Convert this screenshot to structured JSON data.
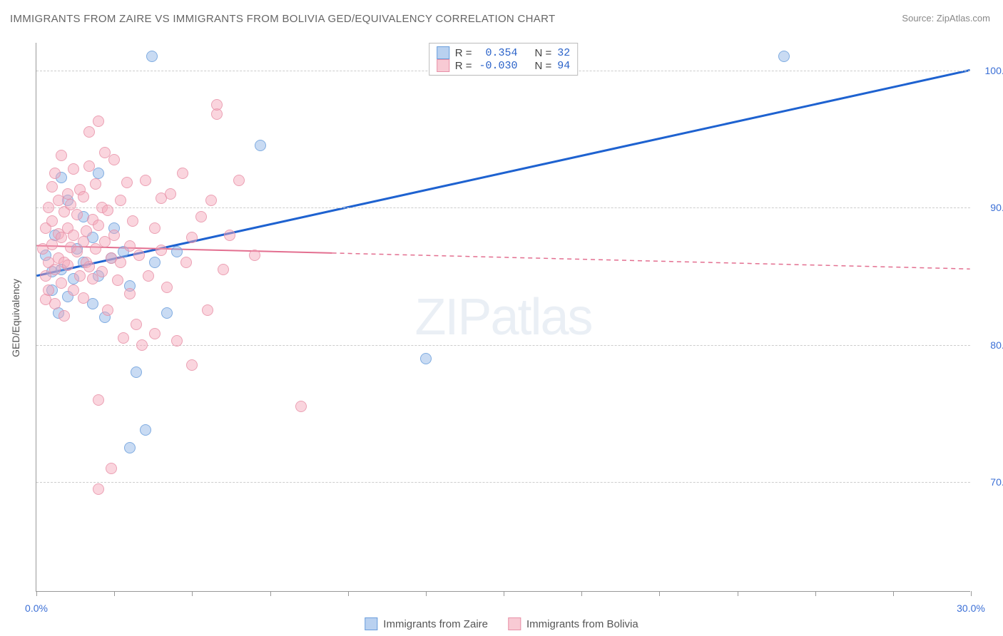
{
  "title": "IMMIGRANTS FROM ZAIRE VS IMMIGRANTS FROM BOLIVIA GED/EQUIVALENCY CORRELATION CHART",
  "source_label": "Source:",
  "source_value": "ZipAtlas.com",
  "watermark": "ZIPatlas",
  "chart": {
    "type": "scatter",
    "y_axis_label": "GED/Equivalency",
    "background_color": "#ffffff",
    "grid_color": "#cccccc",
    "axis_color": "#999999",
    "xlim": [
      0,
      30
    ],
    "ylim": [
      62,
      102
    ],
    "x_ticks_at": [
      0,
      2.5,
      5,
      7.5,
      10,
      12.5,
      15,
      17.5,
      20,
      22.5,
      25,
      27.5,
      30
    ],
    "x_labels": [
      {
        "at": 0,
        "text": "0.0%"
      },
      {
        "at": 30,
        "text": "30.0%"
      }
    ],
    "y_gridlines": [
      70,
      80,
      90,
      100
    ],
    "y_labels": [
      {
        "at": 70,
        "text": "70.0%"
      },
      {
        "at": 80,
        "text": "80.0%"
      },
      {
        "at": 90,
        "text": "90.0%"
      },
      {
        "at": 100,
        "text": "100.0%"
      }
    ],
    "tick_label_color": "#3b6fd6",
    "tick_label_fontsize": 14,
    "series": [
      {
        "name": "Immigrants from Zaire",
        "color_fill": "rgba(138,178,230,0.55)",
        "color_stroke": "#6a9edc",
        "R": "0.354",
        "N": "32",
        "trend": {
          "x1": 0,
          "y1": 85,
          "x2": 30,
          "y2": 100,
          "solid_until_x": 30,
          "color": "#1e62d0",
          "width": 3
        },
        "points": [
          [
            0.3,
            86.5
          ],
          [
            0.5,
            84.0
          ],
          [
            0.5,
            85.3
          ],
          [
            0.6,
            88.0
          ],
          [
            0.7,
            82.3
          ],
          [
            0.8,
            92.2
          ],
          [
            0.8,
            85.5
          ],
          [
            1.0,
            90.5
          ],
          [
            1.0,
            83.5
          ],
          [
            1.2,
            84.8
          ],
          [
            1.3,
            87.0
          ],
          [
            1.5,
            89.3
          ],
          [
            1.5,
            86.0
          ],
          [
            1.8,
            83.0
          ],
          [
            1.8,
            87.8
          ],
          [
            2.0,
            92.5
          ],
          [
            2.0,
            85.0
          ],
          [
            2.2,
            82.0
          ],
          [
            2.4,
            86.3
          ],
          [
            2.5,
            88.5
          ],
          [
            2.8,
            86.8
          ],
          [
            3.0,
            72.5
          ],
          [
            3.0,
            84.3
          ],
          [
            3.2,
            78.0
          ],
          [
            3.5,
            73.8
          ],
          [
            3.7,
            101.0
          ],
          [
            3.8,
            86.0
          ],
          [
            4.2,
            82.3
          ],
          [
            4.5,
            86.8
          ],
          [
            7.2,
            94.5
          ],
          [
            12.5,
            79.0
          ],
          [
            24.0,
            101.0
          ]
        ]
      },
      {
        "name": "Immigrants from Bolivia",
        "color_fill": "rgba(244,166,184,0.55)",
        "color_stroke": "#e891a8",
        "R": "-0.030",
        "N": "94",
        "trend": {
          "x1": 0,
          "y1": 87.2,
          "x2": 30,
          "y2": 85.5,
          "solid_until_x": 9.5,
          "color": "#e36f90",
          "width": 2
        },
        "points": [
          [
            0.2,
            87.0
          ],
          [
            0.3,
            85.0
          ],
          [
            0.3,
            88.5
          ],
          [
            0.3,
            83.3
          ],
          [
            0.4,
            90.0
          ],
          [
            0.4,
            86.0
          ],
          [
            0.4,
            84.0
          ],
          [
            0.5,
            89.0
          ],
          [
            0.5,
            87.3
          ],
          [
            0.5,
            91.5
          ],
          [
            0.6,
            85.5
          ],
          [
            0.6,
            92.5
          ],
          [
            0.6,
            83.0
          ],
          [
            0.7,
            88.1
          ],
          [
            0.7,
            86.3
          ],
          [
            0.7,
            90.5
          ],
          [
            0.8,
            84.5
          ],
          [
            0.8,
            93.8
          ],
          [
            0.8,
            87.8
          ],
          [
            0.9,
            86.0
          ],
          [
            0.9,
            89.7
          ],
          [
            0.9,
            82.1
          ],
          [
            1.0,
            91.0
          ],
          [
            1.0,
            88.5
          ],
          [
            1.0,
            85.8
          ],
          [
            1.1,
            87.1
          ],
          [
            1.1,
            90.2
          ],
          [
            1.2,
            84.0
          ],
          [
            1.2,
            92.8
          ],
          [
            1.2,
            88.0
          ],
          [
            1.3,
            86.8
          ],
          [
            1.3,
            89.5
          ],
          [
            1.4,
            85.0
          ],
          [
            1.4,
            91.3
          ],
          [
            1.5,
            87.5
          ],
          [
            1.5,
            83.4
          ],
          [
            1.5,
            90.8
          ],
          [
            1.6,
            88.3
          ],
          [
            1.6,
            86.0
          ],
          [
            1.7,
            93.0
          ],
          [
            1.7,
            95.5
          ],
          [
            1.7,
            85.7
          ],
          [
            1.8,
            89.1
          ],
          [
            1.8,
            84.8
          ],
          [
            1.9,
            87.0
          ],
          [
            1.9,
            91.7
          ],
          [
            2.0,
            96.3
          ],
          [
            2.0,
            88.7
          ],
          [
            2.0,
            76.0
          ],
          [
            2.1,
            85.3
          ],
          [
            2.1,
            90.0
          ],
          [
            2.2,
            94.0
          ],
          [
            2.2,
            87.5
          ],
          [
            2.3,
            82.5
          ],
          [
            2.3,
            89.8
          ],
          [
            2.4,
            86.3
          ],
          [
            2.4,
            71.0
          ],
          [
            2.5,
            93.5
          ],
          [
            2.5,
            88.0
          ],
          [
            2.6,
            84.7
          ],
          [
            2.7,
            90.5
          ],
          [
            2.7,
            86.0
          ],
          [
            2.8,
            80.5
          ],
          [
            2.9,
            91.8
          ],
          [
            3.0,
            87.2
          ],
          [
            3.0,
            83.7
          ],
          [
            3.1,
            89.0
          ],
          [
            3.2,
            81.5
          ],
          [
            3.3,
            86.5
          ],
          [
            3.4,
            80.0
          ],
          [
            3.5,
            92.0
          ],
          [
            3.6,
            85.0
          ],
          [
            3.8,
            88.5
          ],
          [
            3.8,
            80.8
          ],
          [
            4.0,
            86.9
          ],
          [
            4.0,
            90.7
          ],
          [
            4.2,
            84.2
          ],
          [
            4.3,
            91.0
          ],
          [
            4.5,
            80.3
          ],
          [
            4.8,
            86.0
          ],
          [
            5.0,
            87.8
          ],
          [
            5.0,
            78.5
          ],
          [
            5.3,
            89.3
          ],
          [
            5.5,
            82.5
          ],
          [
            5.6,
            90.5
          ],
          [
            5.8,
            96.8
          ],
          [
            5.8,
            97.5
          ],
          [
            6.0,
            85.5
          ],
          [
            6.2,
            88.0
          ],
          [
            6.5,
            92.0
          ],
          [
            7.0,
            86.5
          ],
          [
            8.5,
            75.5
          ],
          [
            4.7,
            92.5
          ],
          [
            2.0,
            69.5
          ]
        ]
      }
    ]
  },
  "legend_bottom": [
    {
      "swatch": "a",
      "label": "Immigrants from Zaire"
    },
    {
      "swatch": "b",
      "label": "Immigrants from Bolivia"
    }
  ],
  "legend_top_rows": [
    {
      "swatch": "a",
      "r_lbl": "R =",
      "r": "0.354",
      "n_lbl": "N =",
      "n": "32"
    },
    {
      "swatch": "b",
      "r_lbl": "R =",
      "r": "-0.030",
      "n_lbl": "N =",
      "n": "94"
    }
  ]
}
